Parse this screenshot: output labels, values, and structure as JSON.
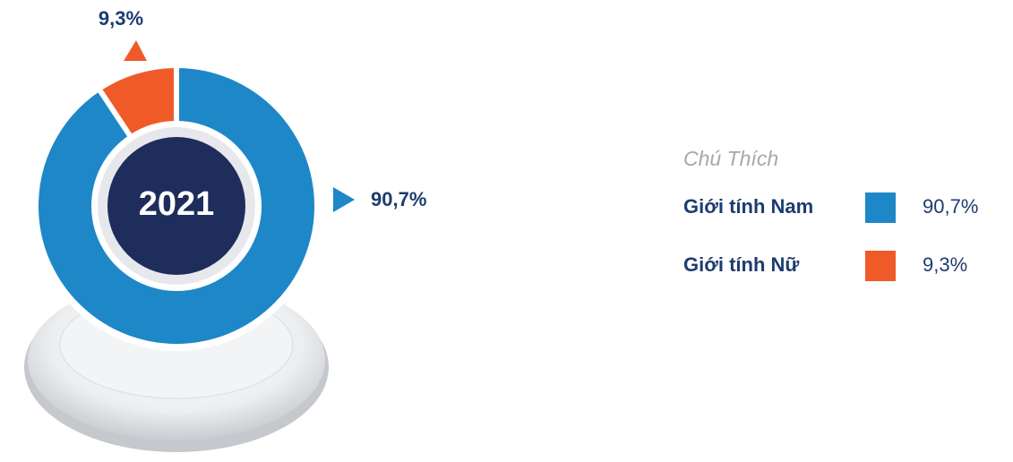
{
  "chart_data": {
    "type": "pie",
    "center_label": "2021",
    "legend_title": "Chú Thích",
    "categories": [
      "Giới tính Nam",
      "Giới tính Nữ"
    ],
    "values": [
      90.7,
      9.3
    ],
    "value_labels": [
      "90,7%",
      "9,3%"
    ],
    "colors": [
      "#1e87c8",
      "#f05a28"
    ]
  }
}
